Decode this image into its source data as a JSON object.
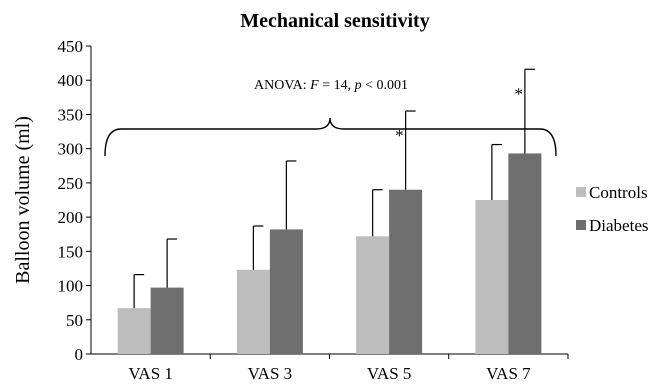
{
  "chart_data": {
    "type": "bar",
    "title": "Mechanical sensitivity",
    "ylabel": "Balloon volume (ml)",
    "xlabel": "",
    "ylim": [
      0,
      450
    ],
    "yticks": [
      0,
      50,
      100,
      150,
      200,
      250,
      300,
      350,
      400,
      450
    ],
    "categories": [
      "VAS 1",
      "VAS 3",
      "VAS 5",
      "VAS 7"
    ],
    "series": [
      {
        "name": "Controls",
        "color": "#bdbdbd",
        "values": [
          67,
          123,
          172,
          225
        ],
        "error_upper": [
          116,
          187,
          240,
          306
        ]
      },
      {
        "name": "Diabetes",
        "color": "#6e6e6e",
        "values": [
          97,
          182,
          240,
          293
        ],
        "error_upper": [
          168,
          282,
          355,
          416
        ]
      }
    ],
    "annotation": {
      "prefix": "ANOVA:  ",
      "stat": "F",
      "eq": " = 14, ",
      "p": "p",
      "rest": " < 0.001"
    },
    "significance_marker": "*",
    "significant_categories": [
      "VAS 5",
      "VAS 7"
    ],
    "legend_position": "right",
    "grid": false
  }
}
